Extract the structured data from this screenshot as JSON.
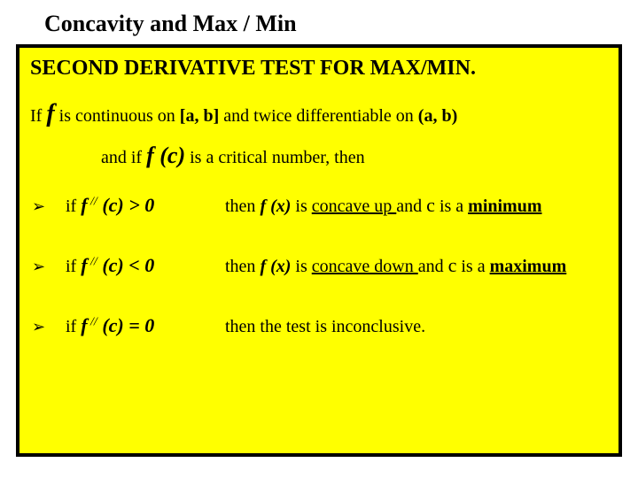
{
  "colors": {
    "page_bg": "#ffffff",
    "box_bg": "#ffff00",
    "box_border": "#000000",
    "text": "#000000"
  },
  "typography": {
    "title_size_pt": 26,
    "subtitle_size_pt": 24,
    "body_size_pt": 20,
    "f_big_size_pt": 28,
    "family": "Times New Roman"
  },
  "title": "Concavity and Max / Min",
  "subtitle": "SECOND DERIVATIVE TEST FOR MAX/MIN.",
  "line1_pre": "If ",
  "line1_f": "f",
  "line1_post": " is continuous on ",
  "line1_interval1": "[a, b]",
  "line1_mid": " and twice differentiable on ",
  "line1_interval2": "(a, b)",
  "line2_pre": "and  if  ",
  "line2_fc": "f (c)",
  "line2_post": "  is a critical number, then",
  "bullet_char": "➢",
  "bullets": [
    {
      "cond_pre": "if ",
      "cond_f": "f",
      "cond_sup": " //",
      "cond_arg": " (c) ",
      "cond_ineq": "> 0",
      "concl_pre": "then  ",
      "concl_fx": "f (x)",
      "concl_mid": " is ",
      "concl_ul1": "concave up ",
      "concl_and": "and ",
      "concl_c": "c",
      "concl_isamx": " is a ",
      "concl_mm": "minimum"
    },
    {
      "cond_pre": "if ",
      "cond_f": "f",
      "cond_sup": " //",
      "cond_arg": " (c) ",
      "cond_ineq": "< 0",
      "concl_pre": "then  ",
      "concl_fx": "f (x)",
      "concl_mid": " is ",
      "concl_ul1": "concave down ",
      "concl_and": "and ",
      "concl_c": "c",
      "concl_isamx": " is a ",
      "concl_mm": "maximum"
    },
    {
      "cond_pre": "if ",
      "cond_f": "f",
      "cond_sup": " //",
      "cond_arg": " (c) ",
      "cond_ineq": "= 0",
      "concl_plain": "then the test is inconclusive."
    }
  ]
}
